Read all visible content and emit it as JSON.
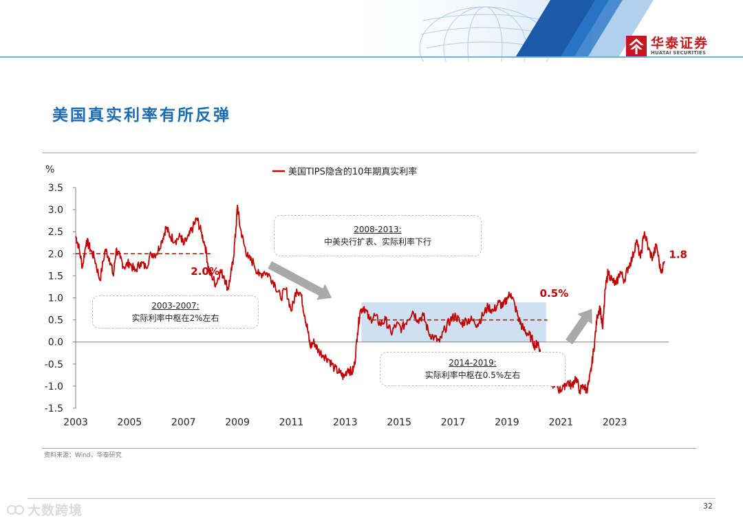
{
  "brand": {
    "name_cn": "华泰证券",
    "name_en": "HUATAI SECURITIES",
    "red": "#c7161d",
    "blue": "#1a6bb5"
  },
  "page_title": "美国真实利率有所反弹",
  "source": "资料来源：Wind，华泰研究",
  "page_number": "32",
  "watermark": "大数跨境",
  "chart_data": {
    "type": "line",
    "y_unit": "%",
    "legend": {
      "entry": "美国TIPS隐含的10年期真实利率",
      "placement": "top-center"
    },
    "x_ticks": [
      "2003",
      "2005",
      "2007",
      "2009",
      "2011",
      "2013",
      "2015",
      "2017",
      "2019",
      "2021",
      "2023"
    ],
    "y_ticks": [
      "3.5",
      "3.0",
      "2.5",
      "2.0",
      "1.5",
      "1.0",
      "0.5",
      "0.0",
      "-0.5",
      "-1.0",
      "-1.5"
    ],
    "ylim": [
      -1.5,
      3.5
    ],
    "xlim": [
      2003.0,
      2025.0
    ],
    "grid": false,
    "series": [
      {
        "name": "美国TIPS隐含的10年期真实利率",
        "color": "#c00000",
        "x": [
          2003.0,
          2003.1,
          2003.25,
          2003.4,
          2003.55,
          2003.7,
          2003.9,
          2004.1,
          2004.25,
          2004.4,
          2004.5,
          2004.65,
          2004.8,
          2005.0,
          2005.2,
          2005.4,
          2005.6,
          2005.8,
          2006.0,
          2006.2,
          2006.35,
          2006.5,
          2006.7,
          2006.9,
          2007.0,
          2007.2,
          2007.35,
          2007.5,
          2007.65,
          2007.8,
          2007.95,
          2008.05,
          2008.2,
          2008.35,
          2008.5,
          2008.65,
          2008.75,
          2008.85,
          2008.95,
          2009.0,
          2009.1,
          2009.25,
          2009.4,
          2009.6,
          2009.8,
          2010.0,
          2010.2,
          2010.4,
          2010.6,
          2010.8,
          2011.0,
          2011.2,
          2011.35,
          2011.5,
          2011.6,
          2011.7,
          2011.85,
          2012.0,
          2012.2,
          2012.4,
          2012.6,
          2012.8,
          2012.95,
          2013.1,
          2013.25,
          2013.35,
          2013.45,
          2013.55,
          2013.7,
          2013.9,
          2014.1,
          2014.3,
          2014.5,
          2014.7,
          2014.9,
          2015.1,
          2015.3,
          2015.5,
          2015.7,
          2015.9,
          2016.1,
          2016.3,
          2016.5,
          2016.7,
          2016.9,
          2017.1,
          2017.3,
          2017.5,
          2017.7,
          2017.9,
          2018.1,
          2018.3,
          2018.5,
          2018.7,
          2018.85,
          2019.0,
          2019.15,
          2019.3,
          2019.45,
          2019.6,
          2019.75,
          2019.9,
          2020.05,
          2020.15,
          2020.25,
          2020.35,
          2020.5,
          2020.65,
          2020.8,
          2020.95,
          2021.1,
          2021.25,
          2021.4,
          2021.55,
          2021.7,
          2021.85,
          2021.95,
          2022.05,
          2022.15,
          2022.25,
          2022.35,
          2022.45,
          2022.55,
          2022.65,
          2022.75,
          2022.9,
          2023.05,
          2023.2,
          2023.35,
          2023.5,
          2023.65,
          2023.8,
          2023.95,
          2024.1,
          2024.25,
          2024.4,
          2024.55,
          2024.7,
          2024.85
        ],
        "y": [
          2.4,
          2.2,
          1.7,
          2.3,
          2.1,
          1.9,
          1.4,
          2.1,
          1.9,
          1.5,
          2.1,
          1.9,
          1.7,
          1.8,
          1.6,
          1.8,
          1.7,
          2.0,
          2.0,
          2.3,
          2.6,
          2.4,
          2.3,
          2.4,
          2.2,
          2.4,
          2.6,
          2.8,
          2.5,
          2.2,
          1.6,
          1.5,
          1.3,
          1.6,
          1.5,
          1.2,
          1.5,
          1.9,
          2.6,
          3.1,
          2.6,
          2.2,
          1.9,
          1.8,
          1.5,
          1.6,
          1.5,
          1.3,
          1.0,
          1.2,
          0.7,
          1.2,
          1.1,
          0.6,
          0.3,
          -0.1,
          0.0,
          -0.2,
          -0.3,
          -0.4,
          -0.6,
          -0.7,
          -0.8,
          -0.6,
          -0.7,
          -0.5,
          0.2,
          0.7,
          0.8,
          0.5,
          0.6,
          0.4,
          0.5,
          0.2,
          0.4,
          0.3,
          0.5,
          0.7,
          0.5,
          0.6,
          0.2,
          0.1,
          0.0,
          0.3,
          0.5,
          0.6,
          0.4,
          0.5,
          0.5,
          0.4,
          0.6,
          0.8,
          0.7,
          0.9,
          0.8,
          1.0,
          1.1,
          0.8,
          0.5,
          0.3,
          0.2,
          0.1,
          -0.1,
          0.0,
          -0.3,
          -0.5,
          -0.8,
          -1.0,
          -0.9,
          -1.1,
          -1.0,
          -0.9,
          -1.0,
          -0.8,
          -1.1,
          -1.0,
          -1.1,
          -0.9,
          -0.5,
          0.0,
          0.6,
          0.8,
          0.3,
          1.2,
          1.6,
          1.4,
          1.3,
          1.6,
          1.4,
          1.7,
          1.9,
          2.3,
          1.9,
          2.5,
          2.1,
          1.9,
          2.2,
          1.6,
          1.8
        ]
      }
    ],
    "reference_lines": [
      {
        "y": 2.0,
        "x_start": 2003.0,
        "x_end": 2008.0,
        "color": "#c00000"
      },
      {
        "y": 0.5,
        "x_start": 2014.0,
        "x_end": 2020.5,
        "color": "#c00000"
      }
    ],
    "shaded_region": {
      "x_start": 2013.6,
      "x_end": 2020.45,
      "y_start": 0.0,
      "y_end": 0.9,
      "color": "#cfe0f3"
    },
    "arrows": [
      {
        "from": [
          2010.2,
          1.75
        ],
        "to": [
          2012.5,
          1.0
        ],
        "color": "#a9a9a9"
      },
      {
        "from": [
          2021.3,
          0.0
        ],
        "to": [
          2022.15,
          0.75
        ],
        "color": "#a9a9a9"
      }
    ],
    "value_labels": [
      {
        "text": "2.0%",
        "x": 2007.8,
        "y": 1.52
      },
      {
        "text": "0.5%",
        "x": 2020.75,
        "y": 1.02
      },
      {
        "text": "1.8",
        "x": 2025.35,
        "y": 1.9
      }
    ],
    "annotations": [
      {
        "title": "2003-2007:",
        "body": "实际利率中枢在2%左右"
      },
      {
        "title": "2008-2013:",
        "body": "中美央行扩表、实际利率下行"
      },
      {
        "title": "2014-2019:",
        "body": "实际利率中枢在0.5%左右"
      }
    ]
  }
}
